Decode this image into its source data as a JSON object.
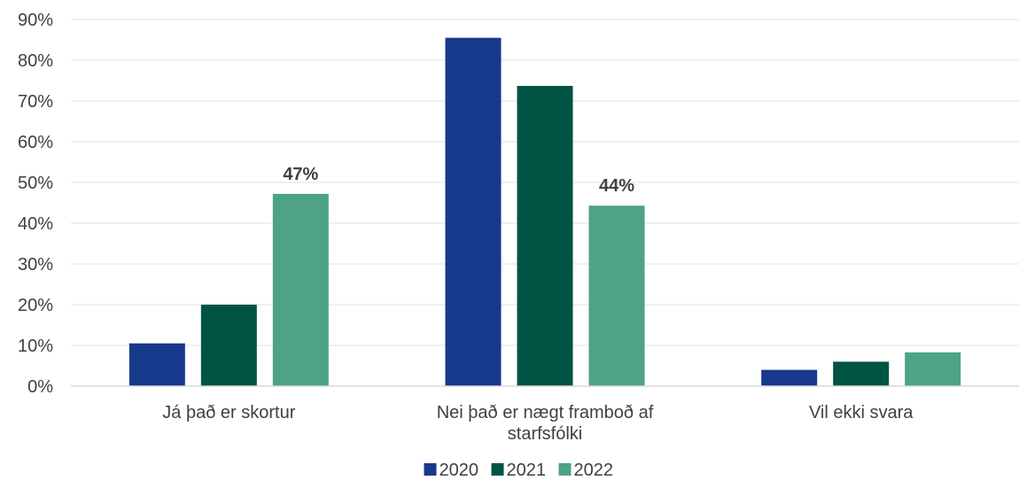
{
  "chart_data": {
    "type": "bar",
    "categories": [
      [
        "Já það er skortur"
      ],
      [
        "Nei það er nægt framboð af",
        "starfsfólki"
      ],
      [
        "Vil ekki svara"
      ]
    ],
    "series": [
      {
        "name": "2020",
        "color": "#17398c",
        "values": [
          10.5,
          85.5,
          4.0
        ]
      },
      {
        "name": "2021",
        "color": "#005443",
        "values": [
          20.0,
          73.7,
          6.0
        ]
      },
      {
        "name": "2022",
        "color": "#4da384",
        "values": [
          47.2,
          44.3,
          8.3
        ]
      }
    ],
    "data_labels": [
      {
        "series": 2,
        "category": 0,
        "text": "47%"
      },
      {
        "series": 2,
        "category": 1,
        "text": "44%"
      }
    ],
    "y_ticks": [
      "0%",
      "10%",
      "20%",
      "30%",
      "40%",
      "50%",
      "60%",
      "70%",
      "80%",
      "90%"
    ],
    "ylim": [
      0,
      90
    ],
    "grid": true,
    "legend": "bottom"
  }
}
